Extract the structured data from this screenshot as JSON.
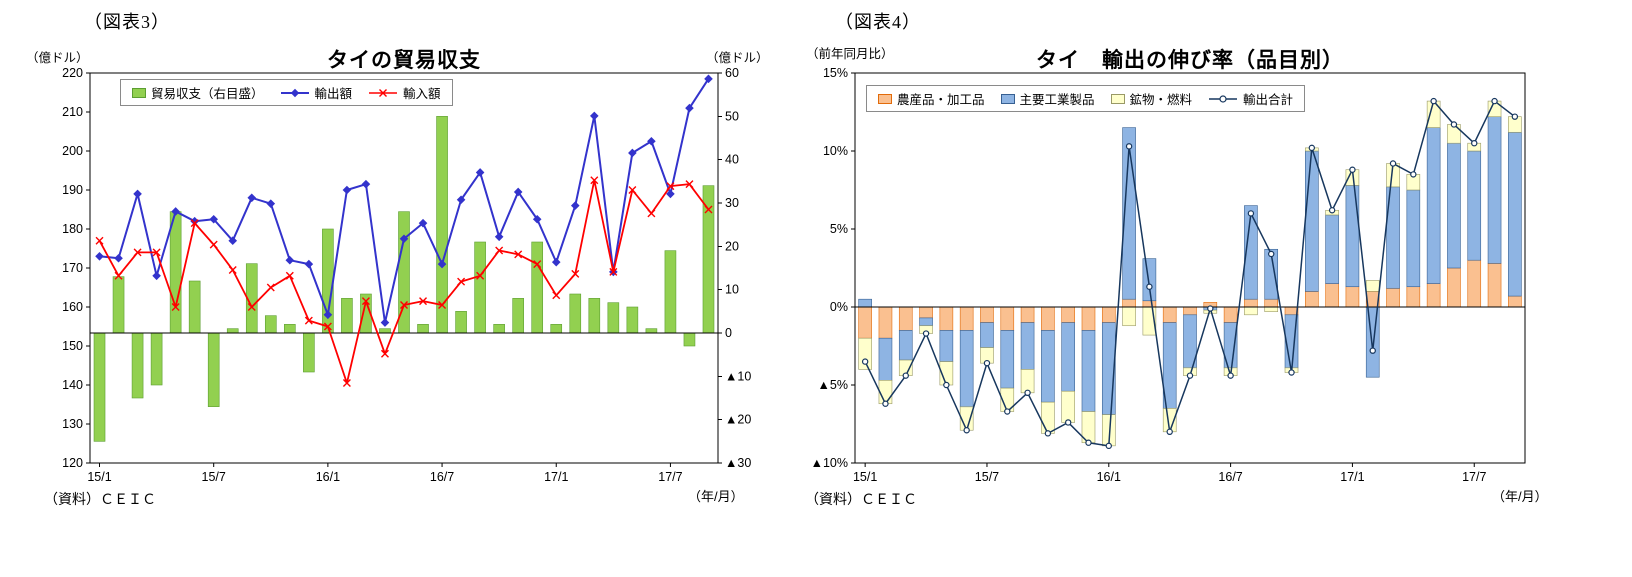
{
  "fig3": {
    "tag": "（図表3）",
    "source": "（資料）ＣＥＩＣ",
    "x_unit": "（年/月）"
  },
  "fig4": {
    "tag": "（図表4）",
    "source": "（資料）ＣＥＩＣ",
    "x_unit": "（年/月）"
  },
  "chart_data": [
    {
      "type": "bar",
      "subtype": "combo_bar_line_dual_axis",
      "title": "タイの貿易収支",
      "x": [
        "15/1",
        "15/2",
        "15/3",
        "15/4",
        "15/5",
        "15/6",
        "15/7",
        "15/8",
        "15/9",
        "15/10",
        "15/11",
        "15/12",
        "16/1",
        "16/2",
        "16/3",
        "16/4",
        "16/5",
        "16/6",
        "16/7",
        "16/8",
        "16/9",
        "16/10",
        "16/11",
        "16/12",
        "17/1",
        "17/2",
        "17/3",
        "17/4",
        "17/5",
        "17/6",
        "17/7",
        "17/8",
        "17/9"
      ],
      "x_tick_labels": [
        "15/1",
        "15/7",
        "16/1",
        "16/7",
        "17/1",
        "17/7"
      ],
      "left_axis": {
        "unit": "（億ドル）",
        "min": 120,
        "max": 220,
        "step": 10
      },
      "right_axis": {
        "unit": "（億ドル）",
        "min": -30,
        "max": 60,
        "step": 10
      },
      "grid": false,
      "legend_position": "top-left-inside",
      "series": [
        {
          "name": "貿易収支（右目盛）",
          "type": "bar",
          "axis": "right",
          "color": "#92D050",
          "border": "#5C9E31",
          "values": [
            -25,
            13,
            -15,
            -12,
            28,
            12,
            -17,
            1,
            16,
            4,
            2,
            -9,
            24,
            8,
            9,
            1,
            28,
            2,
            50,
            5,
            21,
            2,
            8,
            21,
            2,
            9,
            8,
            7,
            6,
            1,
            19,
            -3,
            34
          ]
        },
        {
          "name": "輸出額",
          "type": "line",
          "marker": "diamond",
          "axis": "left",
          "color": "#3333CC",
          "values": [
            173,
            172.5,
            189,
            168,
            184.5,
            182,
            182.5,
            177,
            188,
            186.5,
            172,
            171,
            158,
            190,
            191.5,
            156,
            177.5,
            181.5,
            171,
            187.5,
            194.5,
            178,
            189.5,
            182.5,
            171.5,
            186,
            209,
            169,
            199.5,
            202.5,
            189,
            211,
            218.5
          ]
        },
        {
          "name": "輸入額",
          "type": "line",
          "marker": "x",
          "axis": "left",
          "color": "#FF0000",
          "values": [
            177,
            168,
            174,
            174,
            160,
            181.5,
            176,
            169.5,
            160,
            165,
            168,
            156.5,
            155,
            140.5,
            161.5,
            148,
            160.5,
            161.5,
            160.5,
            166.5,
            168,
            174.5,
            173.5,
            171,
            163,
            168.5,
            192.5,
            169,
            190,
            184,
            191,
            191.5,
            185
          ]
        }
      ]
    },
    {
      "type": "bar",
      "subtype": "stacked_bar_line",
      "title": "タイ　輸出の伸び率（品目別）",
      "y_axis": {
        "note": "（前年同月比）",
        "min": -10,
        "max": 15,
        "step": 5,
        "suffix": "%"
      },
      "x": [
        "15/1",
        "15/2",
        "15/3",
        "15/4",
        "15/5",
        "15/6",
        "15/7",
        "15/8",
        "15/9",
        "15/10",
        "15/11",
        "15/12",
        "16/1",
        "16/2",
        "16/3",
        "16/4",
        "16/5",
        "16/6",
        "16/7",
        "16/8",
        "16/9",
        "16/10",
        "16/11",
        "16/12",
        "17/1",
        "17/2",
        "17/3",
        "17/4",
        "17/5",
        "17/6",
        "17/7",
        "17/8",
        "17/9"
      ],
      "x_tick_labels": [
        "15/1",
        "15/7",
        "16/1",
        "16/7",
        "17/1",
        "17/7"
      ],
      "grid": false,
      "legend_position": "top-inside",
      "series": [
        {
          "name": "農産品・加工品",
          "type": "bar",
          "stack": true,
          "color": "#FAC090",
          "border": "#E26B0A",
          "values": [
            -2.0,
            -2.0,
            -1.5,
            -0.7,
            -1.5,
            -1.5,
            -1.0,
            -1.5,
            -1.0,
            -1.5,
            -1.0,
            -1.5,
            -1.0,
            0.5,
            0.4,
            -1.0,
            -0.5,
            0.3,
            -1.0,
            0.5,
            0.5,
            -0.5,
            1.0,
            1.5,
            1.3,
            1.0,
            1.2,
            1.3,
            1.5,
            2.5,
            3.0,
            2.8,
            0.7
          ]
        },
        {
          "name": "主要工業製品",
          "type": "bar",
          "stack": true,
          "color": "#8EB4E3",
          "border": "#376092",
          "values": [
            0.5,
            -2.7,
            -1.9,
            -0.5,
            -2.0,
            -4.9,
            -1.6,
            -3.7,
            -3.0,
            -4.6,
            -4.4,
            -5.2,
            -5.9,
            11.0,
            2.7,
            -5.5,
            -3.4,
            -0.2,
            -2.9,
            6.0,
            3.2,
            -3.4,
            9.0,
            4.4,
            6.5,
            -4.5,
            6.5,
            6.2,
            10.0,
            8.0,
            7.0,
            9.4,
            10.5
          ]
        },
        {
          "name": "鉱物・燃料",
          "type": "bar",
          "stack": true,
          "color": "#FFFFCC",
          "border": "#999966",
          "values": [
            -2.0,
            -1.5,
            -1.0,
            -0.5,
            -1.5,
            -1.5,
            -1.0,
            -1.5,
            -1.5,
            -2.0,
            -2.0,
            -2.0,
            -2.0,
            -1.2,
            -1.8,
            -1.5,
            -0.5,
            -0.2,
            -0.5,
            -0.5,
            -0.3,
            -0.3,
            0.2,
            0.3,
            1.0,
            0.7,
            1.5,
            1.0,
            1.7,
            1.2,
            0.5,
            1.0,
            1.0
          ]
        },
        {
          "name": "輸出合計",
          "type": "line",
          "marker": "circle-open",
          "color": "#17375E",
          "values": [
            -3.5,
            -6.2,
            -4.4,
            -1.7,
            -5.0,
            -7.9,
            -3.6,
            -6.7,
            -5.5,
            -8.1,
            -7.4,
            -8.7,
            -8.9,
            10.3,
            1.3,
            -8.0,
            -4.4,
            -0.1,
            -4.4,
            6.0,
            3.4,
            -4.2,
            10.2,
            6.2,
            8.8,
            -2.8,
            9.2,
            8.5,
            13.2,
            11.7,
            10.5,
            13.2,
            12.2
          ]
        }
      ]
    }
  ]
}
